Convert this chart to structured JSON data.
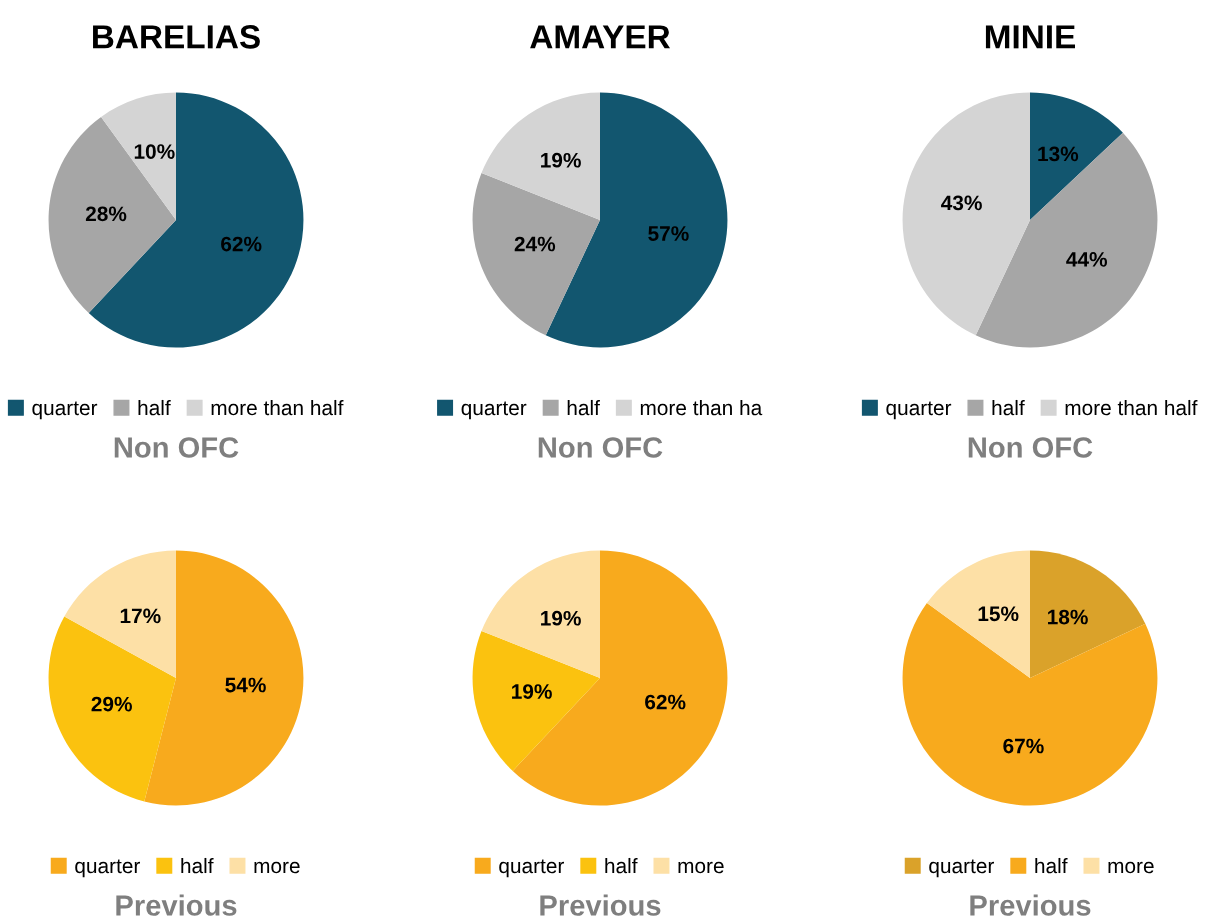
{
  "chart_data": [
    {
      "type": "pie",
      "title": "BARELIAS",
      "categories": [
        "quarter",
        "half",
        "more than half"
      ],
      "values": [
        62,
        28,
        10
      ],
      "value_labels": [
        "62%",
        "28%",
        "10%"
      ],
      "colors": [
        "#12566f",
        "#a6a6a6",
        "#d4d4d4"
      ],
      "legend": "bottom",
      "annotations": [
        "Non OFC"
      ]
    },
    {
      "type": "pie",
      "title": "AMAYER",
      "categories": [
        "quarter",
        "half",
        "more than ha"
      ],
      "values": [
        57,
        24,
        19
      ],
      "value_labels": [
        "57%",
        "24%",
        "19%"
      ],
      "colors": [
        "#12566f",
        "#a6a6a6",
        "#d4d4d4"
      ],
      "legend": "bottom",
      "annotations": [
        "Non OFC"
      ]
    },
    {
      "type": "pie",
      "title": "MINIE",
      "categories": [
        "quarter",
        "half",
        "more than half"
      ],
      "values": [
        13,
        44,
        43
      ],
      "value_labels": [
        "13%",
        "44%",
        "43%"
      ],
      "colors": [
        "#12566f",
        "#a6a6a6",
        "#d4d4d4"
      ],
      "legend": "bottom",
      "annotations": [
        "Non OFC"
      ]
    },
    {
      "type": "pie",
      "categories": [
        "quarter",
        "half",
        "more"
      ],
      "values": [
        54,
        29,
        17
      ],
      "value_labels": [
        "54%",
        "29%",
        "17%"
      ],
      "colors": [
        "#f8aa1d",
        "#fbc20f",
        "#fde0a6"
      ],
      "legend": "bottom",
      "annotations": [
        "Previous"
      ]
    },
    {
      "type": "pie",
      "categories": [
        "quarter",
        "half",
        "more"
      ],
      "values": [
        62,
        19,
        19
      ],
      "value_labels": [
        "62%",
        "19%",
        "19%"
      ],
      "colors": [
        "#f8aa1d",
        "#fbc20f",
        "#fde0a6"
      ],
      "legend": "bottom",
      "annotations": [
        "Previous"
      ]
    },
    {
      "type": "pie",
      "categories": [
        "quarter",
        "half",
        "more"
      ],
      "values": [
        18,
        67,
        15
      ],
      "value_labels": [
        "18%",
        "67%",
        "15%"
      ],
      "colors": [
        "#daa22a",
        "#f8aa1d",
        "#fde0a6"
      ],
      "legend": "bottom",
      "annotations": [
        "Previous"
      ]
    }
  ]
}
